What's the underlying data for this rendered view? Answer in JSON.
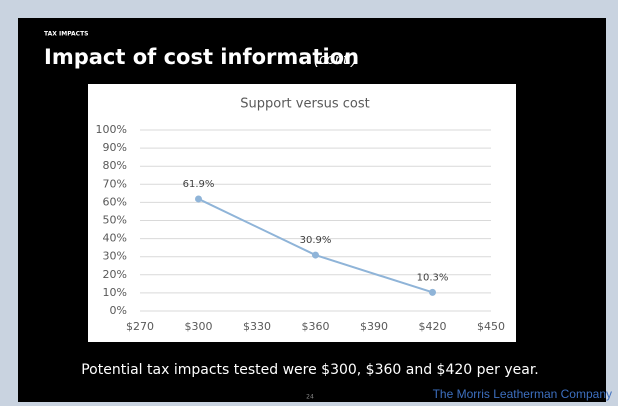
{
  "kicker": "TAX IMPACTS",
  "title": "Impact of cost information",
  "title_note": "(cont.)",
  "footer_note": "Potential tax impacts tested were $300, $360 and $420 per year.",
  "page_number": "24",
  "company": "The Morris Leatherman Company",
  "chart_data": {
    "type": "line",
    "title": "Support versus cost",
    "x": [
      300,
      360,
      420
    ],
    "series": [
      {
        "name": "Support",
        "color": "#8fb4d8",
        "values": [
          61.9,
          30.9,
          10.3
        ],
        "value_labels": [
          "61.9%",
          "30.9%",
          "10.3%"
        ]
      }
    ],
    "xlim": [
      270,
      450
    ],
    "xticks": [
      {
        "value": 270,
        "label": "$270"
      },
      {
        "value": 300,
        "label": "$300"
      },
      {
        "value": 330,
        "label": "$330"
      },
      {
        "value": 360,
        "label": "$360"
      },
      {
        "value": 390,
        "label": "$390"
      },
      {
        "value": 420,
        "label": "$420"
      },
      {
        "value": 450,
        "label": "$450"
      }
    ],
    "ylim": [
      0,
      100
    ],
    "yticks": [
      {
        "value": 0,
        "label": "0%"
      },
      {
        "value": 10,
        "label": "10%"
      },
      {
        "value": 20,
        "label": "20%"
      },
      {
        "value": 30,
        "label": "30%"
      },
      {
        "value": 40,
        "label": "40%"
      },
      {
        "value": 50,
        "label": "50%"
      },
      {
        "value": 60,
        "label": "60%"
      },
      {
        "value": 70,
        "label": "70%"
      },
      {
        "value": 80,
        "label": "80%"
      },
      {
        "value": 90,
        "label": "90%"
      },
      {
        "value": 100,
        "label": "100%"
      }
    ],
    "grid": true
  }
}
